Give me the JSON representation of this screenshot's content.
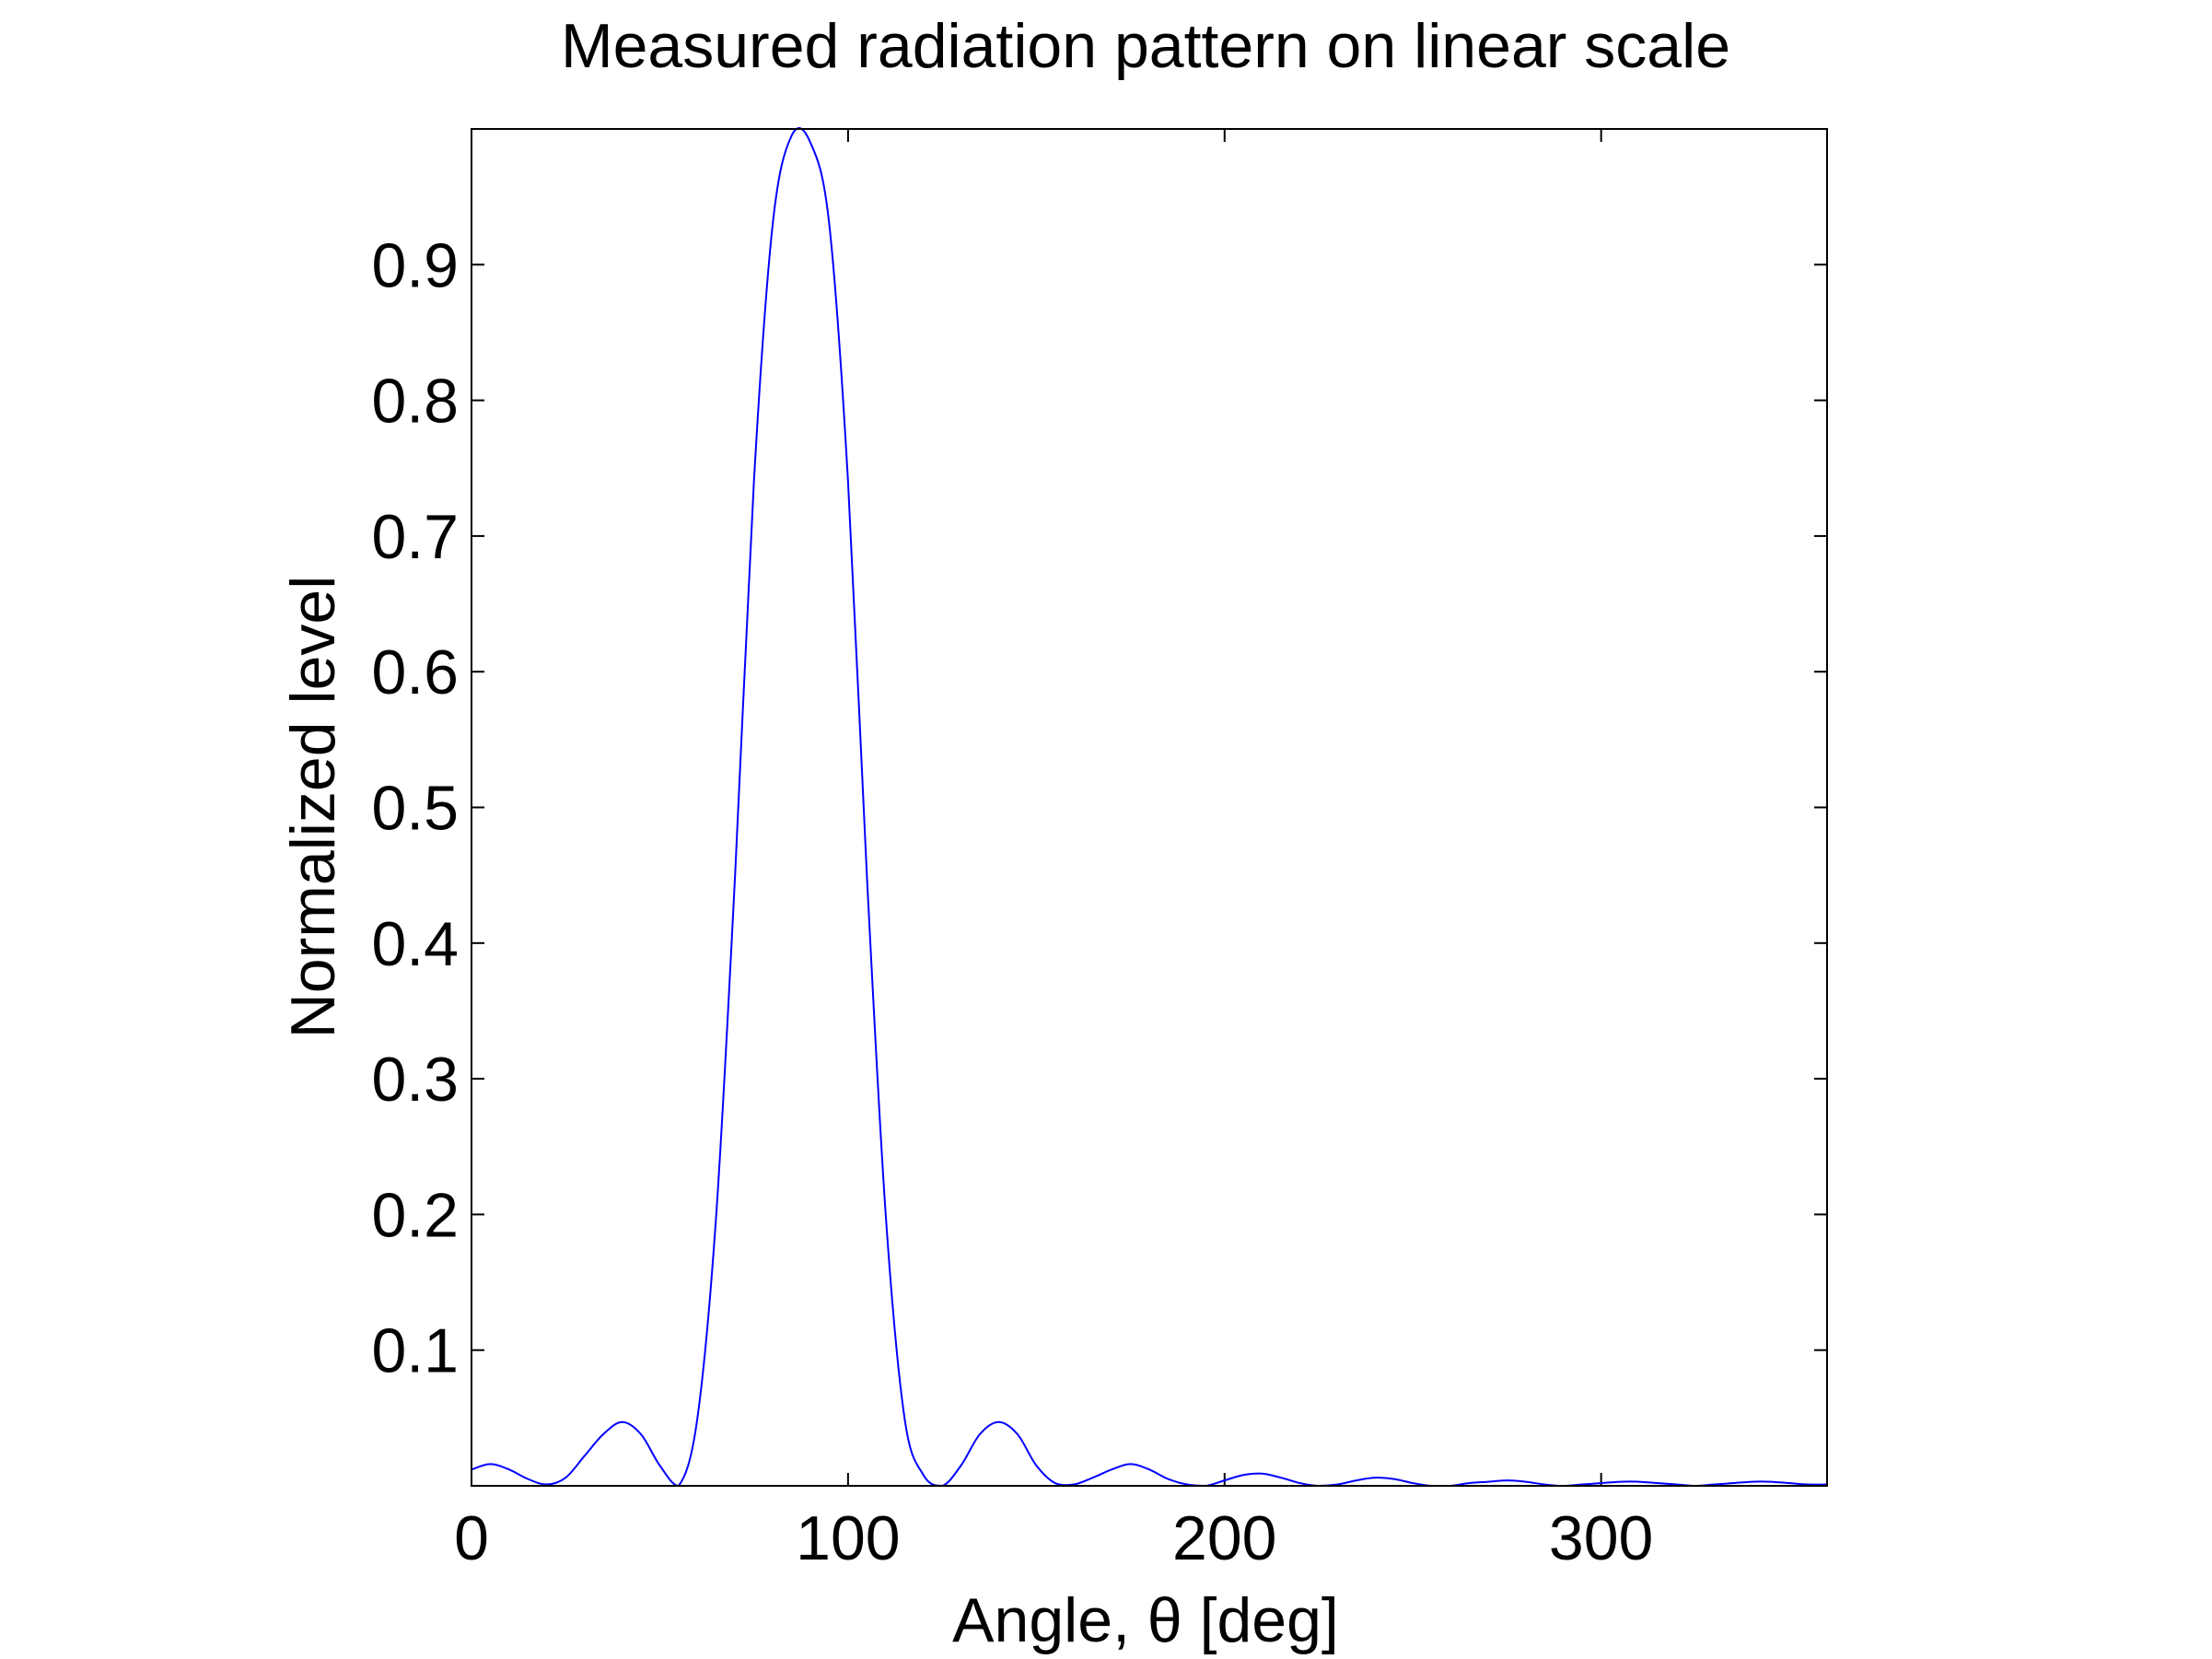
{
  "chart_data": {
    "type": "line",
    "title": "Measured radiation pattern on linear scale",
    "xlabel": "Angle, θ [deg]",
    "ylabel": "Normalized level",
    "xlim": [
      0,
      360
    ],
    "ylim": [
      0,
      1
    ],
    "xticks": [
      0,
      100,
      200,
      300
    ],
    "yticks": [
      0.1,
      0.2,
      0.3,
      0.4,
      0.5,
      0.6,
      0.7,
      0.8,
      0.9
    ],
    "grid": false,
    "line_color": "#0000ff",
    "series": [
      {
        "x": [
          0,
          5,
          10,
          15,
          20,
          25,
          30,
          35,
          40,
          45,
          50,
          55,
          60,
          65,
          70,
          75,
          80,
          85,
          90,
          95,
          100,
          105,
          110,
          115,
          120,
          125,
          130,
          135,
          140,
          145,
          150,
          155,
          160,
          165,
          170,
          175,
          180,
          185,
          190,
          195,
          200,
          205,
          210,
          215,
          220,
          225,
          230,
          235,
          240,
          245,
          250,
          255,
          260,
          265,
          270,
          275,
          280,
          285,
          290,
          295,
          300,
          305,
          310,
          315,
          320,
          325,
          330,
          335,
          340,
          345,
          350,
          355,
          360
        ],
        "y": [
          0.012,
          0.016,
          0.012,
          0.005,
          0.001,
          0.006,
          0.022,
          0.038,
          0.047,
          0.038,
          0.015,
          0.0,
          0.05,
          0.2,
          0.45,
          0.74,
          0.93,
          0.995,
          0.99,
          0.93,
          0.74,
          0.45,
          0.2,
          0.05,
          0.008,
          0.0,
          0.015,
          0.038,
          0.047,
          0.038,
          0.015,
          0.002,
          0.001,
          0.006,
          0.012,
          0.016,
          0.012,
          0.005,
          0.001,
          0.0,
          0.004,
          0.008,
          0.009,
          0.006,
          0.002,
          0.0,
          0.001,
          0.004,
          0.006,
          0.005,
          0.002,
          0.0,
          0.0,
          0.002,
          0.003,
          0.004,
          0.003,
          0.001,
          0.0,
          0.001,
          0.002,
          0.003,
          0.003,
          0.002,
          0.001,
          0.0,
          0.001,
          0.002,
          0.003,
          0.003,
          0.002,
          0.001,
          0.001
        ]
      }
    ]
  }
}
